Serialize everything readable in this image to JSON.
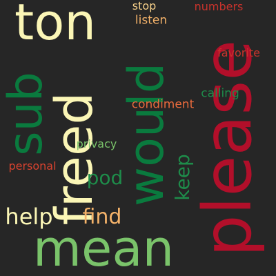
{
  "background": "#262626",
  "words": {
    "please": {
      "text": "please",
      "color": "#b20f2a"
    },
    "would": {
      "text": "would",
      "color": "#0a7a3e"
    },
    "mean": {
      "text": "mean",
      "color": "#7ac36a"
    },
    "freed": {
      "text": "freed",
      "color": "#fbf6b6"
    },
    "sub": {
      "text": "sub",
      "color": "#0a7a3e"
    },
    "ton": {
      "text": "ton",
      "color": "#fbf6b6"
    },
    "keep": {
      "text": "keep",
      "color": "#1e8c4a"
    },
    "help": {
      "text": "help",
      "color": "#fbf6b6"
    },
    "find": {
      "text": "find",
      "color": "#f5b36a"
    },
    "pod": {
      "text": "pod",
      "color": "#1e8c4a"
    },
    "stop": {
      "text": "stop",
      "color": "#f8d18a"
    },
    "listen": {
      "text": "listen",
      "color": "#f5b36a"
    },
    "numbers": {
      "text": "numbers",
      "color": "#c8332c"
    },
    "favorite": {
      "text": "favorite",
      "color": "#c8332c"
    },
    "calling": {
      "text": "calling",
      "color": "#1e8c4a"
    },
    "condiment": {
      "text": "condiment",
      "color": "#e86a3c"
    },
    "privacy": {
      "text": "privacy",
      "color": "#7ac36a"
    },
    "personal": {
      "text": "personal",
      "color": "#d9432f"
    }
  }
}
